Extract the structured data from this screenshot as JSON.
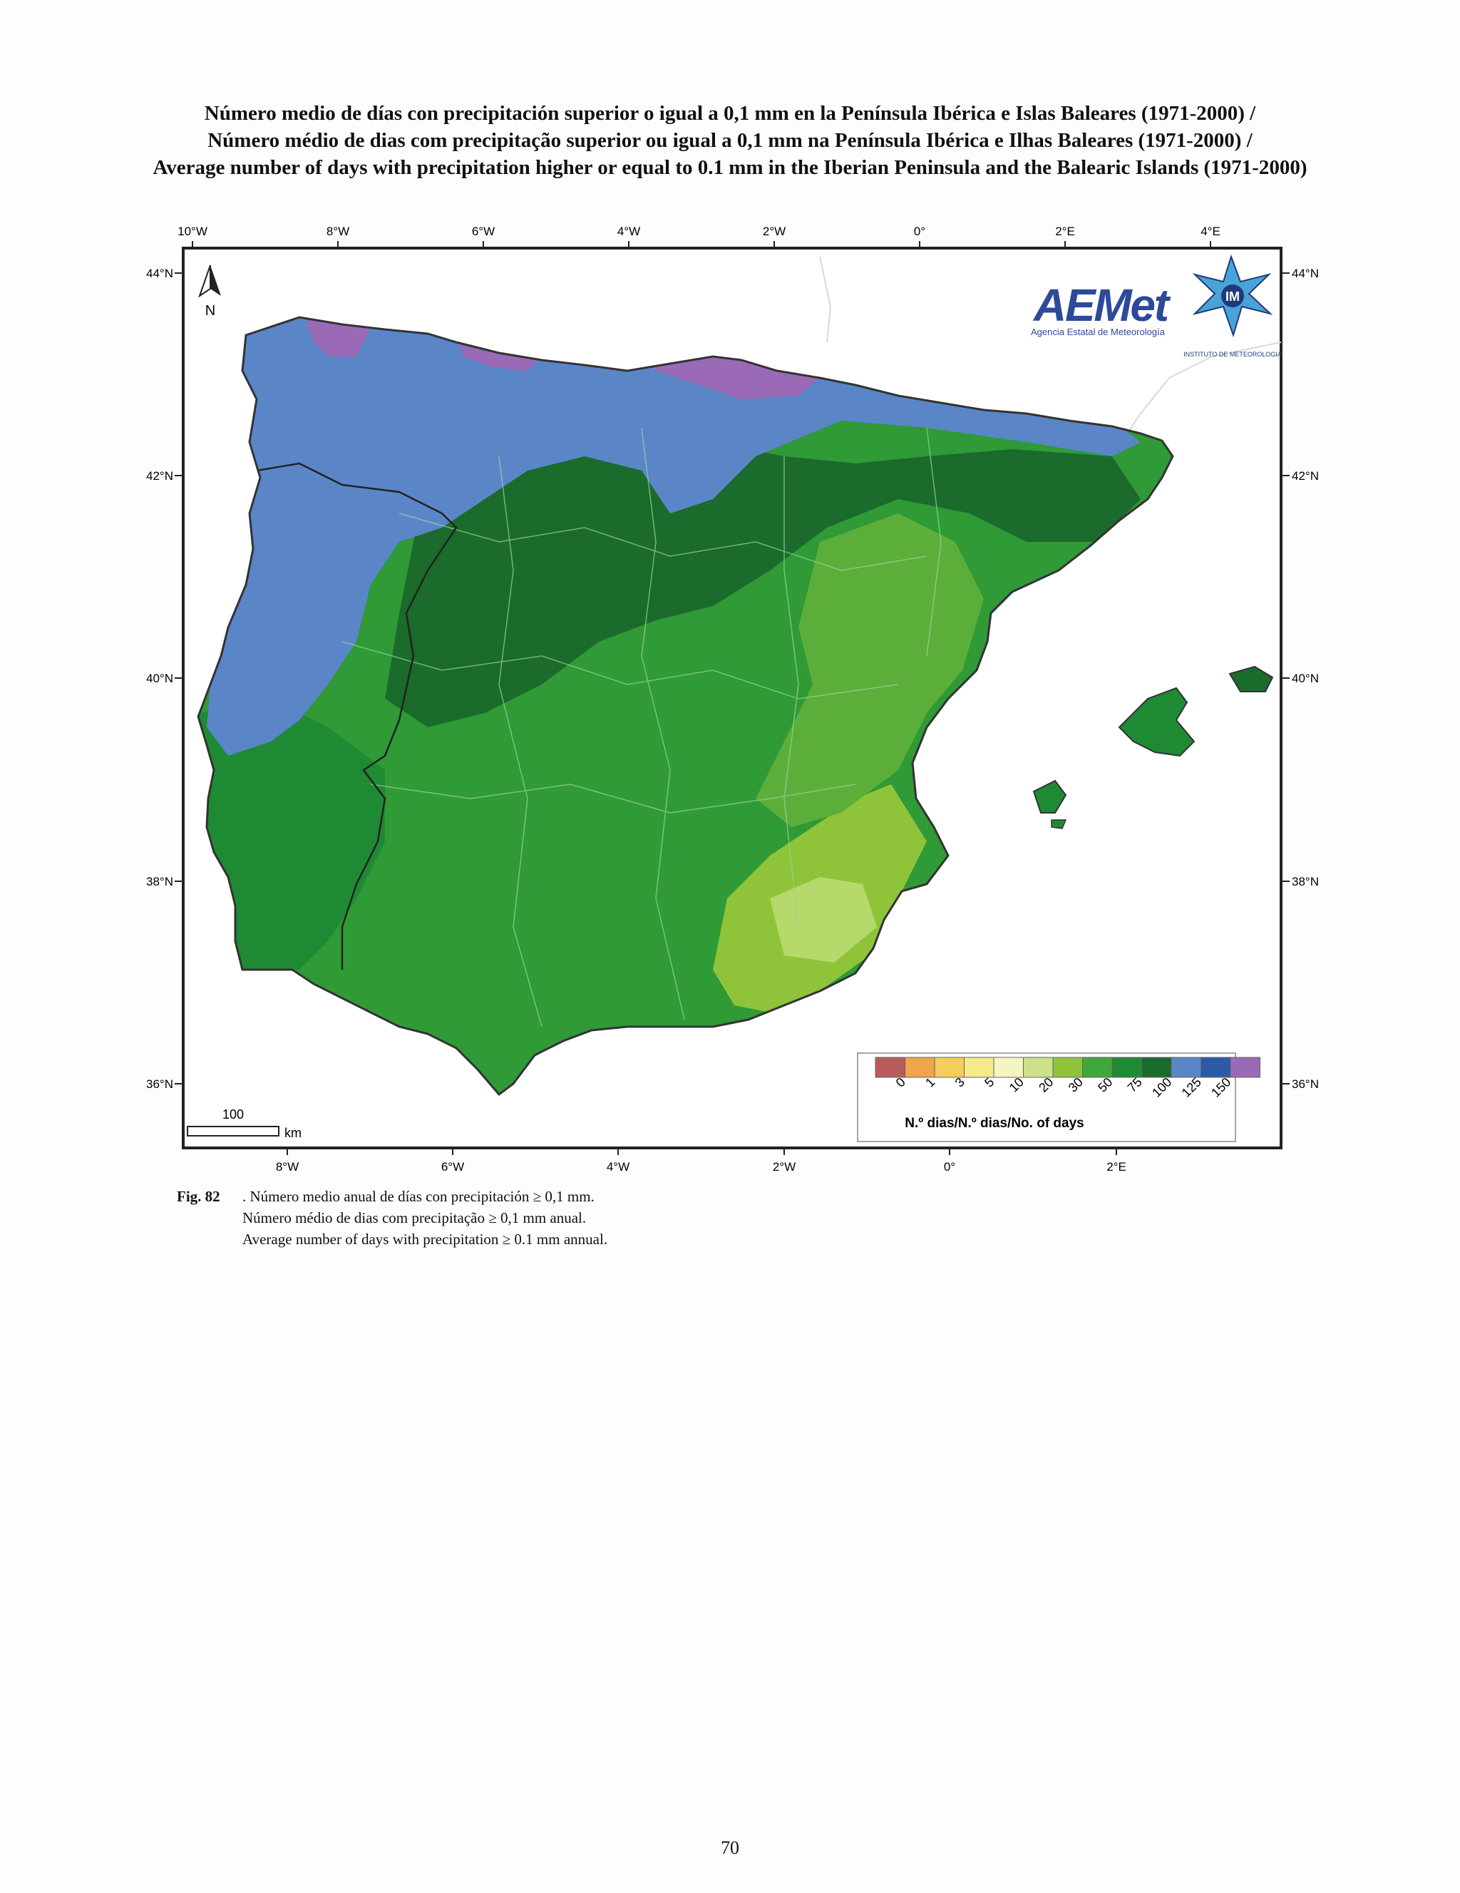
{
  "title": {
    "line_es": "Número medio de días con precipitación superior o igual a 0,1 mm en la Península Ibérica e Islas Baleares (1971-2000) /",
    "line_pt": "Número médio de dias com precipitação superior ou igual a 0,1 mm na Península Ibérica e Ilhas Baleares (1971-2000) /",
    "line_en": "Average number of days with precipitation higher or equal to 0.1 mm in the Iberian Peninsula and the Balearic Islands (1971-2000)"
  },
  "map": {
    "top_longitude_labels": [
      "10°W",
      "8°W",
      "6°W",
      "4°W",
      "2°W",
      "0°",
      "2°E",
      "4°E"
    ],
    "bottom_longitude_labels": [
      "8°W",
      "6°W",
      "4°W",
      "2°W",
      "0°",
      "2°E"
    ],
    "latitude_labels": [
      "44°N",
      "42°N",
      "40°N",
      "38°N",
      "36°N"
    ],
    "north_arrow_label": "N",
    "scale_bar": {
      "value": "100",
      "unit": "km"
    },
    "logos": {
      "aemet_text": "AEMet",
      "aemet_subtitle": "Agencia Estatal de Meteorología",
      "im_text": "IM",
      "im_subtitle": "INSTITUTO DE METEOROLOGIA"
    },
    "legend": {
      "title": "N.º dias/N.º dias/No. of days",
      "tick_labels": [
        "0",
        "1",
        "3",
        "5",
        "10",
        "20",
        "30",
        "50",
        "75",
        "100",
        "125",
        "150"
      ],
      "colors": [
        "#b85b5b",
        "#f0a54a",
        "#f4cd5a",
        "#f7ea8a",
        "#f4f5c0",
        "#cde08a",
        "#8fc43a",
        "#3fa83a",
        "#1f8a34",
        "#1b6b2c",
        "#5a86c8",
        "#2c5aa8",
        "#9a6ab6"
      ]
    },
    "colors": {
      "sea": "#ffffff",
      "outline": "#333333",
      "zone_purple": "#9a6ab6",
      "zone_blue": "#5a86c8",
      "zone_dark_green": "#1b6b2c",
      "zone_mid_green": "#2f9a36",
      "zone_light_green": "#5cae3a",
      "zone_yellow_green": "#8fc43a"
    }
  },
  "caption": {
    "label": "Fig. 82",
    "line1": ". Número medio anual de días con precipitación ≥ 0,1 mm.",
    "line2": "Número médio de dias com precipitação ≥ 0,1 mm anual.",
    "line3": "Average number of days with precipitation ≥ 0.1 mm annual."
  },
  "page_number": "70"
}
